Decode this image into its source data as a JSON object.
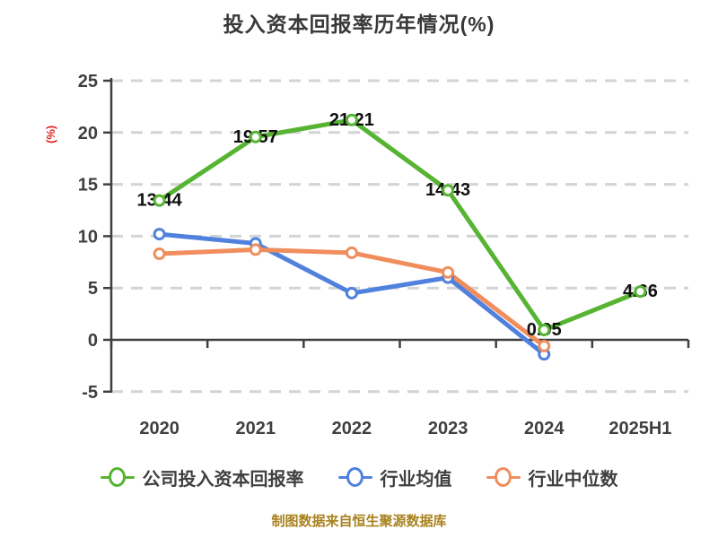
{
  "chart_data": {
    "type": "line",
    "title": "投入资本回报率历年情况(%)",
    "xlabel": "",
    "ylabel": "(%)",
    "categories": [
      "2020",
      "2021",
      "2022",
      "2023",
      "2024",
      "2025H1"
    ],
    "yticks": [
      25,
      20,
      15,
      10,
      5,
      0,
      -5
    ],
    "ylim": [
      -5,
      25
    ],
    "grid": true,
    "legend_position": "bottom",
    "series": [
      {
        "name": "公司投入资本回报率",
        "color": "#56b432",
        "values": [
          13.44,
          19.57,
          21.21,
          14.43,
          0.95,
          4.66
        ],
        "labeled": true,
        "data_labels": [
          "13.44",
          "19.57",
          "21.21",
          "14.43",
          "0.95",
          "4.66"
        ]
      },
      {
        "name": "行业均值",
        "color": "#4f81dd",
        "values": [
          10.2,
          9.3,
          4.5,
          6.0,
          -1.4,
          null
        ],
        "labeled": false
      },
      {
        "name": "行业中位数",
        "color": "#f08d5c",
        "values": [
          8.3,
          8.7,
          8.4,
          6.5,
          -0.6,
          null
        ],
        "labeled": false
      }
    ]
  },
  "footer_note": "制图数据来自恒生聚源数据库",
  "colors": {
    "title": "#383838",
    "tick": "#3f3f3f",
    "axis": "#3f3f3f",
    "grid": "#d4d4d4",
    "data_label": "#101010",
    "y_axis_label": "#e02222",
    "marker_fill": "#ffffff",
    "footer": "#a8821e",
    "background": "#ffffff"
  }
}
